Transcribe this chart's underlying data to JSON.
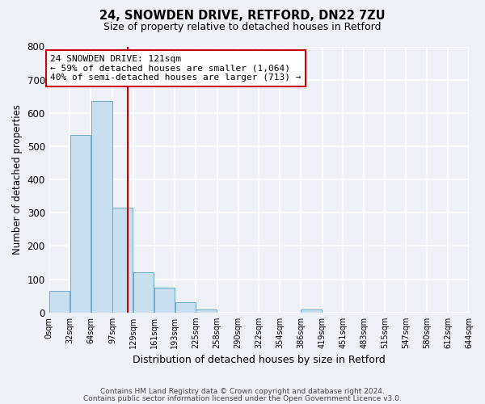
{
  "title": "24, SNOWDEN DRIVE, RETFORD, DN22 7ZU",
  "subtitle": "Size of property relative to detached houses in Retford",
  "xlabel": "Distribution of detached houses by size in Retford",
  "ylabel": "Number of detached properties",
  "bar_color": "#c8dff0",
  "bar_edge_color": "#6fa8cc",
  "property_line_x": 121,
  "property_line_color": "#cc0000",
  "ylim": [
    0,
    800
  ],
  "yticks": [
    0,
    100,
    200,
    300,
    400,
    500,
    600,
    700,
    800
  ],
  "bin_edges": [
    0,
    32,
    64,
    97,
    129,
    161,
    193,
    225,
    258,
    290,
    322,
    354,
    386,
    419,
    451,
    483,
    515,
    547,
    580,
    612,
    644
  ],
  "bin_labels": [
    "0sqm",
    "32sqm",
    "64sqm",
    "97sqm",
    "129sqm",
    "161sqm",
    "193sqm",
    "225sqm",
    "258sqm",
    "290sqm",
    "322sqm",
    "354sqm",
    "386sqm",
    "419sqm",
    "451sqm",
    "483sqm",
    "515sqm",
    "547sqm",
    "580sqm",
    "612sqm",
    "644sqm"
  ],
  "bar_heights": [
    65,
    535,
    635,
    315,
    120,
    75,
    32,
    10,
    0,
    0,
    0,
    0,
    10,
    0,
    0,
    0,
    0,
    0,
    0,
    0
  ],
  "annotation_text": "24 SNOWDEN DRIVE: 121sqm\n← 59% of detached houses are smaller (1,064)\n40% of semi-detached houses are larger (713) →",
  "annotation_box_color": "#ffffff",
  "annotation_box_edge": "#cc0000",
  "footer_line1": "Contains HM Land Registry data © Crown copyright and database right 2024.",
  "footer_line2": "Contains public sector information licensed under the Open Government Licence v3.0.",
  "background_color": "#eef2f8"
}
